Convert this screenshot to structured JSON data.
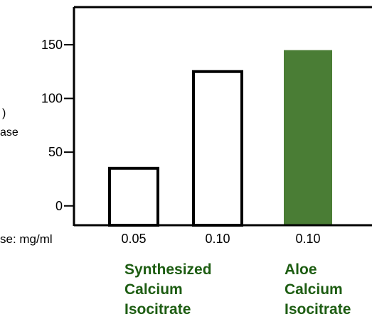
{
  "colors": {
    "text": "#000000",
    "axis": "#000000",
    "bar_outline": "#000000",
    "hollow_fill": "#ffffff",
    "aloe_fill": "#4a7d35",
    "group_label": "#1d5d12"
  },
  "chart_data": {
    "type": "bar",
    "title": "",
    "xlabel": "",
    "ylabel_fragments": [
      ")",
      "ase"
    ],
    "dose_label": "se: mg/ml",
    "ylim": [
      -18,
      185
    ],
    "yticks": [
      0,
      50,
      100,
      150
    ],
    "ytick_labels": [
      "0",
      "50",
      "100",
      "150"
    ],
    "grid": false,
    "categories": [
      "0.05",
      "0.10",
      "0.10"
    ],
    "values": [
      35,
      125,
      145
    ],
    "bar_styles": [
      "hollow",
      "hollow",
      "filled"
    ],
    "groups": [
      {
        "lines": [
          "Synthesized",
          "Calcium",
          "Isocitrate"
        ]
      },
      {
        "lines": [
          "Aloe",
          "Calcium",
          "Isocitrate"
        ]
      }
    ]
  }
}
